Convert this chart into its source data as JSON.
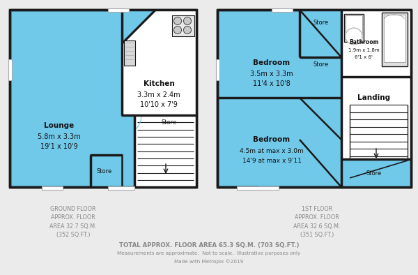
{
  "bg_color": "#ebebeb",
  "wall_color": "#1a1a1a",
  "floor_color": "#71c9ea",
  "white_color": "#ffffff",
  "gray_color": "#aaaaaa",
  "label_color": "#1a1a6e",
  "footer_color": "#888888",
  "ground_floor_label": "GROUND FLOOR\nAPPROX. FLOOR\nAREA 32.7 SQ.M.\n(352 SQ.FT.)",
  "first_floor_label": "1ST FLOOR\nAPPROX. FLOOR\nAREA 32.6 SQ.M.\n(351 SQ.FT.)",
  "total_label": "TOTAL APPROX. FLOOR AREA 65.3 SQ.M. (703 SQ.FT.)",
  "measurements_label": "Measurements are approximate.  Not to scale.  Illustrative purposes only",
  "made_with_label": "Made with Metropix ©2019"
}
